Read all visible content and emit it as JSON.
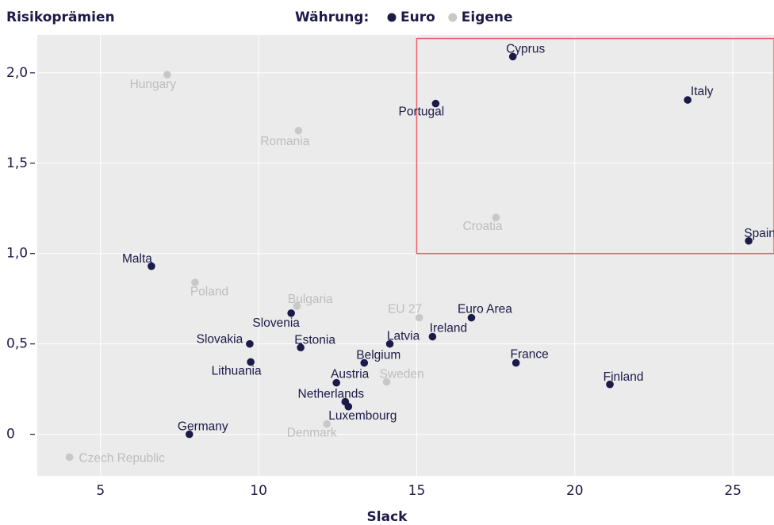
{
  "chart_data": {
    "type": "scatter",
    "title": "Risikoprämien",
    "legend_title": "Währung:",
    "legend_position": "top",
    "xlabel": "Slack",
    "xlim": [
      3,
      26.3
    ],
    "ylim": [
      -0.23,
      2.21
    ],
    "xticks": [
      5,
      10,
      15,
      20,
      25
    ],
    "yticks": [
      0,
      {
        "value": 0.5,
        "label": "0,5"
      },
      {
        "value": 1,
        "label": "1,0"
      },
      {
        "value": 1.5,
        "label": "1,5"
      },
      {
        "value": 2,
        "label": "2,0"
      }
    ],
    "grid": true,
    "background": "#ebebeb",
    "series": [
      {
        "name": "Euro",
        "color": "#1c1a48",
        "label_color": "#1c1a48",
        "labels": [
          "Cyprus",
          "Portugal",
          "Italy",
          "Spain",
          "Malta",
          "Slovenia",
          "Euro Area",
          "Ireland",
          "Latvia",
          "Slovakia",
          "Estonia",
          "Belgium",
          "Lithuania",
          "France",
          "Austria",
          "Finland",
          "Netherlands",
          "Luxembourg",
          "Germany"
        ],
        "x": [
          18.04,
          15.6,
          23.57,
          25.5,
          6.61,
          11.03,
          16.73,
          15.5,
          14.15,
          9.72,
          11.33,
          13.34,
          9.75,
          18.14,
          12.46,
          21.11,
          12.74,
          12.84,
          7.81
        ],
        "values": [
          2.09,
          1.83,
          1.85,
          1.07,
          0.93,
          0.67,
          0.645,
          0.54,
          0.5,
          0.5,
          0.48,
          0.395,
          0.4,
          0.395,
          0.285,
          0.276,
          0.18,
          0.153,
          0
        ]
      },
      {
        "name": "Eigene",
        "color": "#c8c8c8",
        "label_color": "#bdbdbd",
        "labels": [
          "Hungary",
          "Romania",
          "Croatia",
          "Poland",
          "Bulgaria",
          "EU 27",
          "Sweden",
          "Denmark",
          "Czech Republic"
        ],
        "x": [
          7.11,
          11.26,
          17.51,
          7.99,
          11.21,
          15.08,
          14.05,
          12.16,
          4.02
        ],
        "values": [
          1.99,
          1.68,
          1.2,
          0.84,
          0.71,
          0.645,
          0.29,
          0.057,
          -0.127
        ]
      }
    ],
    "highlight": {
      "x0": 15,
      "x1": 26.3,
      "y0": 1,
      "y1": 2.19,
      "color": "#e8606a"
    }
  }
}
